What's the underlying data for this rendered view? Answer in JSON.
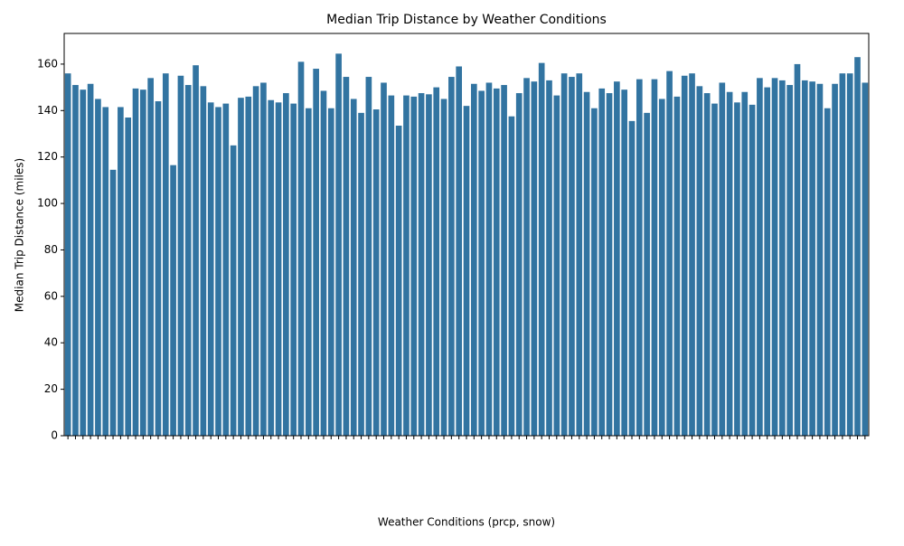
{
  "chart_data": {
    "type": "bar",
    "title": "Median Trip Distance by Weather Conditions",
    "xlabel": "Weather Conditions (prcp, snow)",
    "ylabel": "Median Trip Distance (miles)",
    "color": "#3274a1",
    "categories": [
      null,
      null,
      null,
      null,
      null,
      null,
      null,
      null,
      null,
      null,
      null,
      null,
      null,
      null,
      null,
      null,
      null,
      null,
      null,
      null,
      null,
      null,
      null,
      null,
      null,
      null,
      null,
      null,
      null,
      null,
      null,
      null,
      null,
      null,
      null,
      null,
      null,
      null,
      null,
      null,
      null,
      null,
      null,
      null,
      null,
      null,
      null,
      null,
      null,
      null,
      null,
      null,
      null,
      null,
      null,
      null,
      null,
      null,
      null,
      null,
      null,
      null,
      null,
      null,
      null,
      null,
      null,
      null,
      null,
      null,
      null,
      null,
      null,
      null,
      null,
      null,
      null,
      null,
      null,
      null,
      null,
      null,
      null,
      null,
      null,
      null,
      null,
      null,
      null,
      null,
      null,
      null,
      null,
      null,
      null,
      null,
      null,
      null,
      null,
      null,
      null,
      null,
      null,
      null,
      null,
      null,
      null
    ],
    "values": [
      156,
      151,
      149,
      151.5,
      145,
      141.5,
      114.5,
      141.5,
      137,
      149.5,
      149,
      154,
      144,
      156,
      116.5,
      155,
      151,
      159.5,
      150.5,
      143.5,
      141.5,
      143,
      125,
      145.5,
      146,
      150.5,
      152,
      144.5,
      143.5,
      147.5,
      143,
      161,
      141,
      158,
      148.5,
      141,
      164.5,
      154.5,
      145,
      139,
      154.5,
      140.5,
      152,
      146.5,
      133.5,
      146.5,
      146,
      147.5,
      147,
      150,
      145,
      154.5,
      159,
      142,
      151.5,
      148.5,
      152,
      149.5,
      151,
      137.5,
      147.5,
      154,
      152.5,
      160.5,
      153,
      146.5,
      156,
      154.5,
      156,
      148,
      141,
      149.5,
      147.5,
      152.5,
      149,
      135.5,
      153.5,
      139,
      153.5,
      145,
      157,
      146,
      155,
      156,
      150.5,
      147.5,
      143,
      152,
      148,
      143.5,
      148,
      142.5,
      154,
      150,
      154,
      153,
      151,
      160,
      153,
      152.5,
      151.5,
      141,
      151.5,
      156,
      156,
      163,
      152
    ],
    "ylim": [
      0,
      173.2
    ],
    "yticks": [
      0,
      20,
      40,
      60,
      80,
      100,
      120,
      140,
      160
    ]
  }
}
